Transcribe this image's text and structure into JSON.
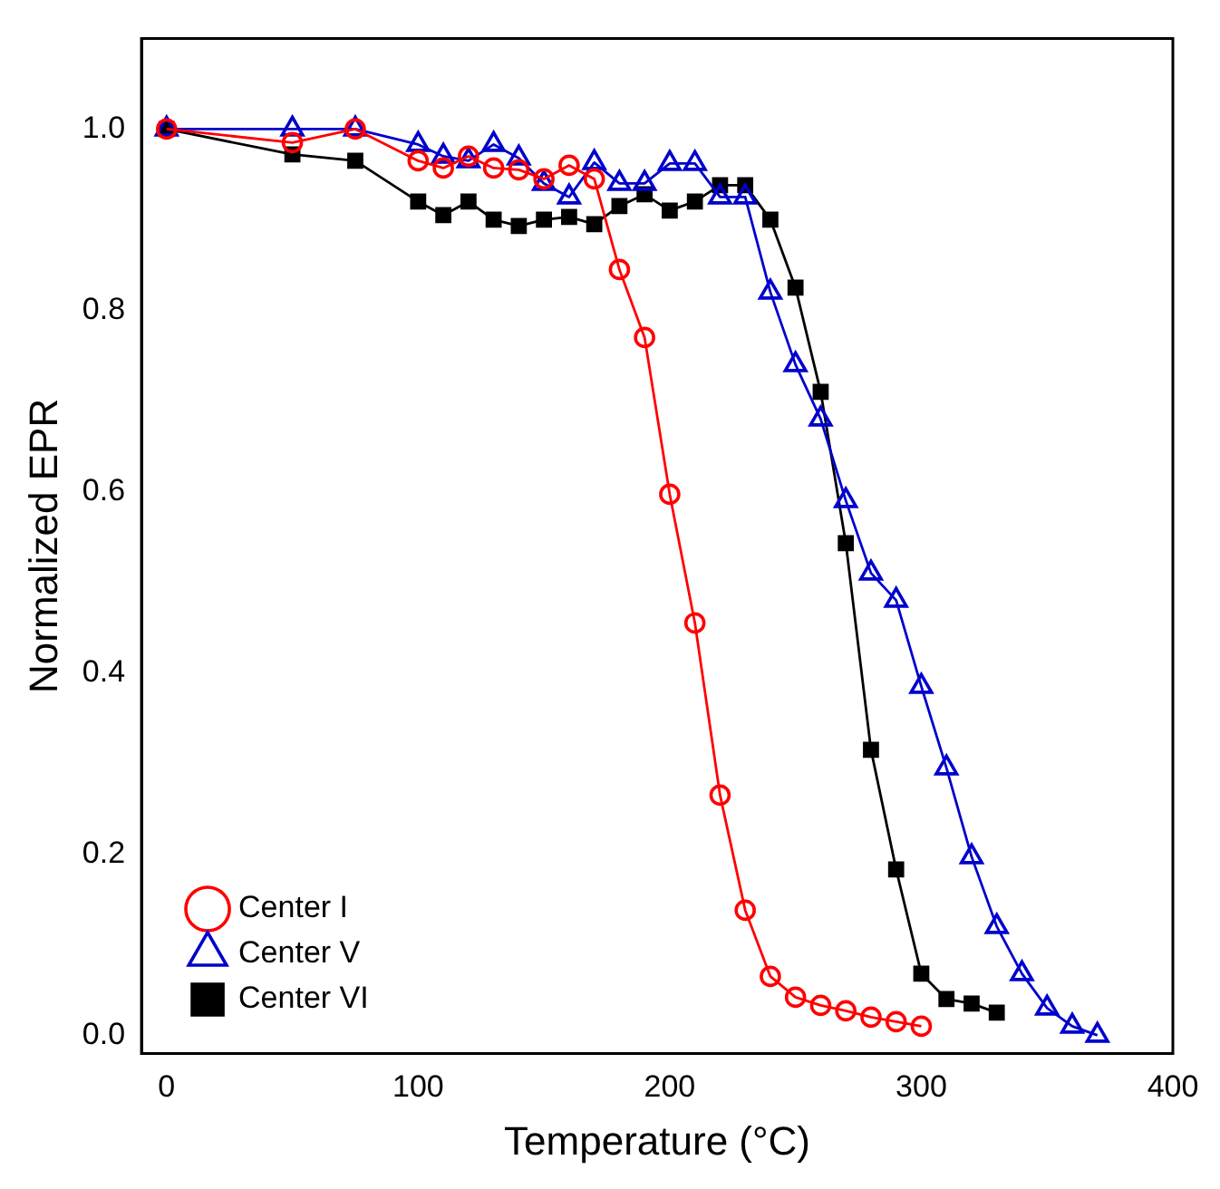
{
  "chart_data": {
    "type": "line",
    "xlabel": "Temperature (°C)",
    "ylabel": "Normalized EPR",
    "xlim": [
      -10,
      400
    ],
    "xticks": [
      0,
      100,
      200,
      300,
      400
    ],
    "ylim": [
      -0.02,
      1.1
    ],
    "yticks": [
      {
        "value": 0,
        "label": "0.0"
      },
      0.2,
      0.4,
      0.6,
      0.8,
      {
        "value": 1,
        "label": "1.0"
      }
    ],
    "grid": false,
    "legend": "bottom left",
    "series": [
      {
        "name": "Center I",
        "color": "#ff0000",
        "marker": "circle",
        "x": [
          0,
          50,
          75,
          100,
          110,
          120,
          130,
          140,
          150,
          160,
          170,
          180,
          190,
          200,
          210,
          220,
          230,
          240,
          250,
          260,
          270,
          280,
          290,
          300
        ],
        "values": [
          1.0,
          0.985,
          1.0,
          0.965,
          0.957,
          0.97,
          0.957,
          0.955,
          0.945,
          0.96,
          0.945,
          0.845,
          0.77,
          0.597,
          0.455,
          0.265,
          0.138,
          0.065,
          0.042,
          0.033,
          0.027,
          0.02,
          0.015,
          0.01
        ]
      },
      {
        "name": "Center V",
        "color": "#0000cc",
        "marker": "triangle",
        "x": [
          0,
          50,
          75,
          100,
          110,
          120,
          130,
          140,
          150,
          160,
          170,
          180,
          190,
          200,
          210,
          220,
          230,
          240,
          250,
          260,
          270,
          280,
          290,
          300,
          310,
          320,
          330,
          340,
          350,
          360,
          370
        ],
        "values": [
          1.0,
          1.0,
          1.0,
          0.983,
          0.97,
          0.965,
          0.983,
          0.968,
          0.94,
          0.925,
          0.963,
          0.94,
          0.94,
          0.962,
          0.962,
          0.925,
          0.925,
          0.82,
          0.74,
          0.68,
          0.59,
          0.51,
          0.48,
          0.385,
          0.295,
          0.197,
          0.12,
          0.068,
          0.03,
          0.01,
          0.0
        ]
      },
      {
        "name": "Center VI",
        "color": "#000000",
        "marker": "square",
        "x": [
          0,
          50,
          75,
          100,
          110,
          120,
          130,
          140,
          150,
          160,
          170,
          180,
          190,
          200,
          210,
          220,
          230,
          240,
          250,
          260,
          270,
          280,
          290,
          300,
          310,
          320,
          330
        ],
        "values": [
          1.0,
          0.972,
          0.965,
          0.92,
          0.905,
          0.92,
          0.9,
          0.893,
          0.9,
          0.903,
          0.895,
          0.915,
          0.928,
          0.91,
          0.92,
          0.938,
          0.938,
          0.9,
          0.825,
          0.71,
          0.543,
          0.315,
          0.183,
          0.068,
          0.04,
          0.035,
          0.025
        ]
      }
    ]
  }
}
